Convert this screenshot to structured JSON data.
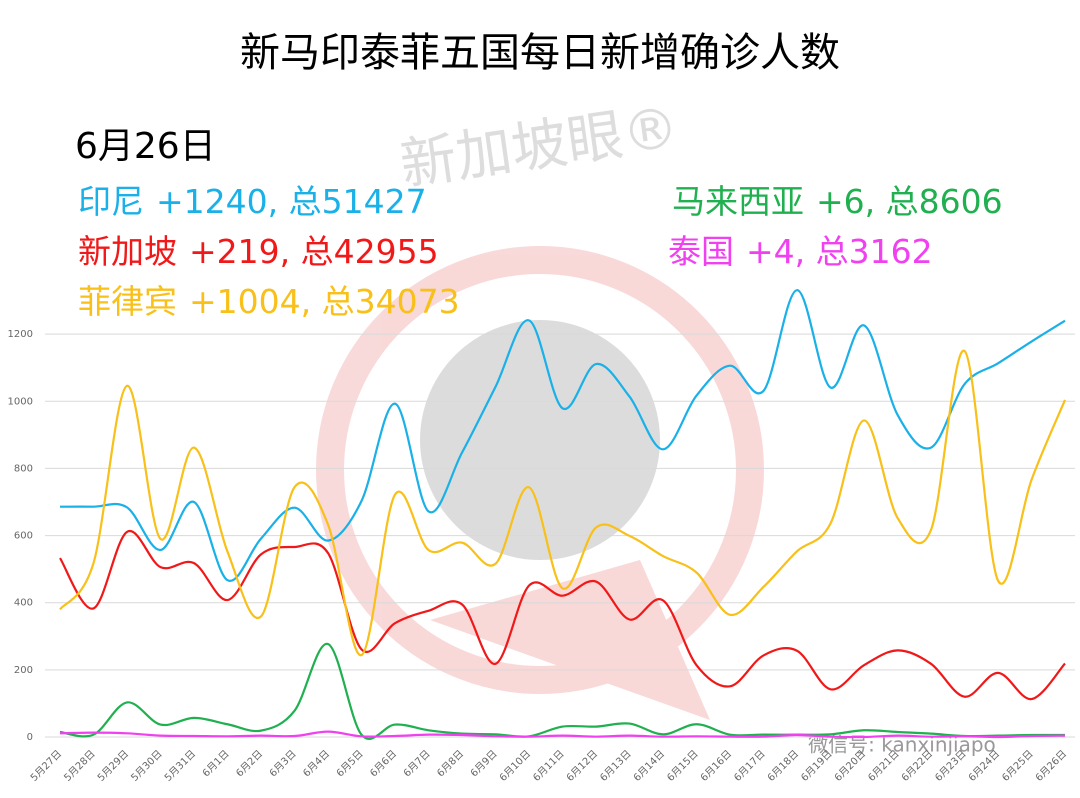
{
  "chart_data": {
    "type": "line",
    "title": "新马印泰菲五国每日新增确诊人数",
    "subtitle": "6月26日",
    "annotations": [
      "+1240, 总51427",
      "+219, 总42955",
      "+1004, 总34073",
      "+6, 总8606",
      "+4, 总3162"
    ],
    "watermark": [
      "新加坡眼®",
      "微信号: kanxinjiapo"
    ],
    "categories": [
      "5月27日",
      "5月28日",
      "5月29日",
      "5月30日",
      "5月31日",
      "6月1日",
      "6月2日",
      "6月3日",
      "6月4日",
      "6月5日",
      "6月6日",
      "6月7日",
      "6月8日",
      "6月9日",
      "6月10日",
      "6月11日",
      "6月12日",
      "6月13日",
      "6月14日",
      "6月15日",
      "6月16日",
      "6月17日",
      "6月18日",
      "6月19日",
      "6月20日",
      "6月21日",
      "6月22日",
      "6月23日",
      "6月24日",
      "6月25日",
      "6月26日"
    ],
    "series": [
      {
        "name": "印尼",
        "color": "#1ab0e8",
        "values": [
          686,
          686,
          684,
          557,
          700,
          467,
          591,
          683,
          585,
          703,
          993,
          672,
          847,
          1043,
          1241,
          979,
          1111,
          1014,
          857,
          1017,
          1106,
          1031,
          1331,
          1041,
          1226,
          960,
          862,
          1051,
          1113,
          1178,
          1240
        ]
      },
      {
        "name": "新加坡",
        "color": "#f01818",
        "values": [
          533,
          383,
          611,
          506,
          518,
          408,
          544,
          566,
          548,
          261,
          339,
          376,
          395,
          218,
          451,
          421,
          463,
          350,
          407,
          214,
          151,
          243,
          257,
          142,
          214,
          258,
          218,
          120,
          191,
          113,
          219
        ]
      },
      {
        "name": "菲律宾",
        "color": "#f8c018",
        "values": [
          380,
          518,
          1046,
          590,
          862,
          552,
          359,
          744,
          633,
          244,
          722,
          557,
          579,
          516,
          744,
          443,
          624,
          599,
          539,
          490,
          364,
          447,
          553,
          636,
          943,
          653,
          617,
          1150,
          466,
          766,
          1004
        ]
      },
      {
        "name": "马来西亚",
        "color": "#20b050",
        "values": [
          15,
          7,
          103,
          37,
          57,
          38,
          19,
          78,
          277,
          7,
          37,
          20,
          10,
          8,
          2,
          31,
          31,
          40,
          8,
          38,
          7,
          7,
          7,
          8,
          20,
          15,
          10,
          3,
          4,
          6,
          6
        ]
      },
      {
        "name": "泰国",
        "color": "#f040f0",
        "values": [
          11,
          13,
          11,
          4,
          3,
          2,
          4,
          3,
          16,
          2,
          3,
          7,
          6,
          2,
          1,
          4,
          1,
          4,
          1,
          2,
          1,
          1,
          6,
          1,
          0,
          4,
          1,
          2,
          0,
          3,
          4
        ]
      }
    ],
    "ylim": [
      0,
      1400
    ],
    "yticks": [
      0,
      200,
      400,
      600,
      800,
      1000,
      1200
    ],
    "grid": true
  }
}
